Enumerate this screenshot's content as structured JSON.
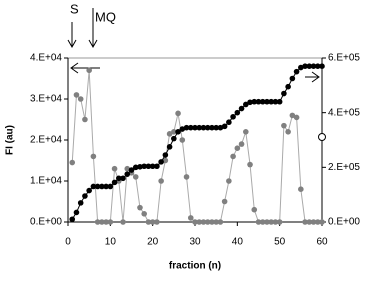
{
  "chart_data": {
    "type": "line",
    "xlabel": "fraction (n)",
    "ylabel": "FI (au)",
    "annotations": [
      "S",
      "MQ"
    ],
    "xlim": [
      0,
      60
    ],
    "xticks": [
      0,
      10,
      20,
      30,
      40,
      50,
      60
    ],
    "ylim": [
      0,
      40000
    ],
    "yticks": [
      {
        "value": 0,
        "label": "0.E+00"
      },
      {
        "value": 10000,
        "label": "1.E+04"
      },
      {
        "value": 20000,
        "label": "2.E+04"
      },
      {
        "value": 30000,
        "label": "3.E+04"
      },
      {
        "value": 40000,
        "label": "4.E+04"
      }
    ],
    "y2lim": [
      0,
      600000
    ],
    "y2ticks": [
      {
        "value": 0,
        "label": "0.E+00"
      },
      {
        "value": 200000,
        "label": "2.E+05"
      },
      {
        "value": 400000,
        "label": "4.E+05"
      },
      {
        "value": 600000,
        "label": "6.E+05"
      }
    ],
    "x": [
      1,
      2,
      3,
      4,
      5,
      6,
      7,
      8,
      9,
      10,
      11,
      12,
      13,
      14,
      15,
      16,
      17,
      18,
      19,
      20,
      21,
      22,
      23,
      24,
      25,
      26,
      27,
      28,
      29,
      30,
      31,
      32,
      33,
      34,
      35,
      36,
      37,
      38,
      39,
      40,
      41,
      42,
      43,
      44,
      45,
      46,
      47,
      48,
      49,
      50,
      51,
      52,
      53,
      54,
      55,
      56,
      57,
      58,
      59,
      60
    ],
    "series": [
      {
        "color": "#808080",
        "values": [
          14500,
          31000,
          30000,
          25000,
          37000,
          16000,
          0,
          0,
          0,
          0,
          13000,
          10000,
          0,
          13000,
          12000,
          11000,
          3500,
          2000,
          0,
          0,
          0,
          10000,
          15000,
          21500,
          22000,
          26500,
          20000,
          11000,
          1000,
          0,
          0,
          0,
          0,
          0,
          0,
          0,
          5000,
          10000,
          16000,
          18000,
          19000,
          22000,
          14000,
          3000,
          0,
          0,
          0,
          0,
          0,
          0,
          23500,
          22000,
          26000,
          25500,
          8000,
          0,
          0,
          0,
          0,
          0
        ]
      },
      {
        "color": "#000000",
        "axis": "y2",
        "values": [
          10000,
          35000,
          70000,
          95000,
          115000,
          130000,
          130000,
          130000,
          130000,
          130000,
          145000,
          160000,
          160000,
          175000,
          190000,
          200000,
          202000,
          204000,
          204000,
          204000,
          204000,
          220000,
          245000,
          275000,
          305000,
          330000,
          340000,
          345000,
          345000,
          345000,
          345000,
          345000,
          345000,
          345000,
          345000,
          345000,
          350000,
          365000,
          385000,
          400000,
          415000,
          430000,
          438000,
          440000,
          440000,
          440000,
          440000,
          440000,
          440000,
          440000,
          470000,
          495000,
          525000,
          550000,
          565000,
          570000,
          570000,
          570000,
          570000,
          570000
        ]
      }
    ]
  }
}
